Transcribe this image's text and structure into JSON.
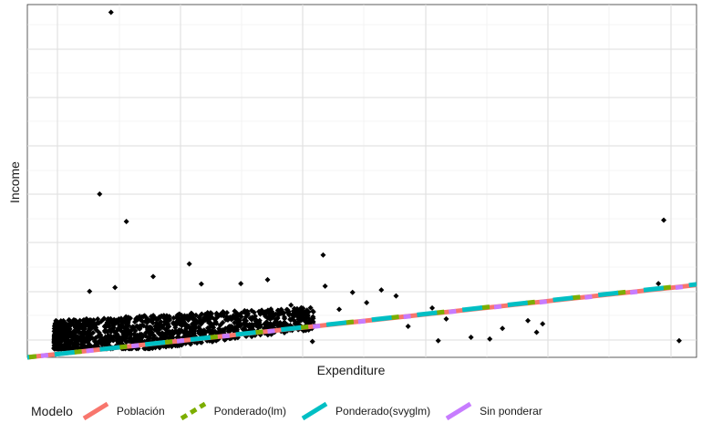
{
  "chart_data": {
    "type": "scatter",
    "xlabel": "Expenditure",
    "ylabel": "Income",
    "xlim": [
      0,
      100
    ],
    "ylim": [
      0,
      100
    ],
    "x_ticks_labeled": false,
    "y_ticks_labeled": false,
    "grid": true,
    "legend_position": "bottom",
    "legend_title": "Modelo",
    "point_color": "#000000",
    "outlier_points": [
      {
        "x": 12.5,
        "y": 97.8
      },
      {
        "x": 10.8,
        "y": 46.3
      },
      {
        "x": 14.8,
        "y": 38.5
      },
      {
        "x": 24.2,
        "y": 26.5
      },
      {
        "x": 44.2,
        "y": 29.0
      },
      {
        "x": 95.1,
        "y": 38.9
      },
      {
        "x": 94.3,
        "y": 20.9
      },
      {
        "x": 97.4,
        "y": 4.7
      },
      {
        "x": 61.4,
        "y": 4.7
      },
      {
        "x": 66.3,
        "y": 5.7
      },
      {
        "x": 69.1,
        "y": 5.2
      },
      {
        "x": 71.0,
        "y": 8.2
      },
      {
        "x": 76.1,
        "y": 7.1
      },
      {
        "x": 77.0,
        "y": 9.5
      },
      {
        "x": 74.8,
        "y": 10.4
      },
      {
        "x": 62.6,
        "y": 10.9
      },
      {
        "x": 52.9,
        "y": 19.1
      },
      {
        "x": 55.1,
        "y": 17.4
      },
      {
        "x": 50.7,
        "y": 15.5
      },
      {
        "x": 46.6,
        "y": 13.6
      },
      {
        "x": 48.6,
        "y": 18.4
      },
      {
        "x": 44.5,
        "y": 20.2
      },
      {
        "x": 35.9,
        "y": 22.0
      },
      {
        "x": 31.9,
        "y": 20.9
      },
      {
        "x": 26.0,
        "y": 20.8
      },
      {
        "x": 18.8,
        "y": 22.9
      },
      {
        "x": 13.1,
        "y": 19.8
      },
      {
        "x": 9.3,
        "y": 18.7
      },
      {
        "x": 40.5,
        "y": 12.4
      },
      {
        "x": 42.6,
        "y": 4.5
      },
      {
        "x": 37.8,
        "y": 9.7
      },
      {
        "x": 39.4,
        "y": 14.8
      },
      {
        "x": 56.9,
        "y": 8.8
      },
      {
        "x": 60.5,
        "y": 14.0
      }
    ],
    "dense_cluster": {
      "x_range": [
        4,
        43
      ],
      "y_range": [
        3,
        15
      ],
      "note_count": 1400
    },
    "series": [
      {
        "name": "Población",
        "type": "line",
        "color": "#F8766D",
        "x": [
          0,
          100
        ],
        "y": [
          0,
          20.5
        ]
      },
      {
        "name": "Ponderado(lm)",
        "type": "line",
        "color": "#7CAE00",
        "x": [
          0,
          100
        ],
        "y": [
          0,
          20.7
        ]
      },
      {
        "name": "Ponderado(svyglm)",
        "type": "line",
        "color": "#00BFC4",
        "x": [
          0,
          100
        ],
        "y": [
          0,
          20.7
        ]
      },
      {
        "name": "Sin ponderar",
        "type": "line",
        "color": "#C77CFF",
        "x": [
          0,
          100
        ],
        "y": [
          0,
          20.4
        ]
      }
    ]
  }
}
